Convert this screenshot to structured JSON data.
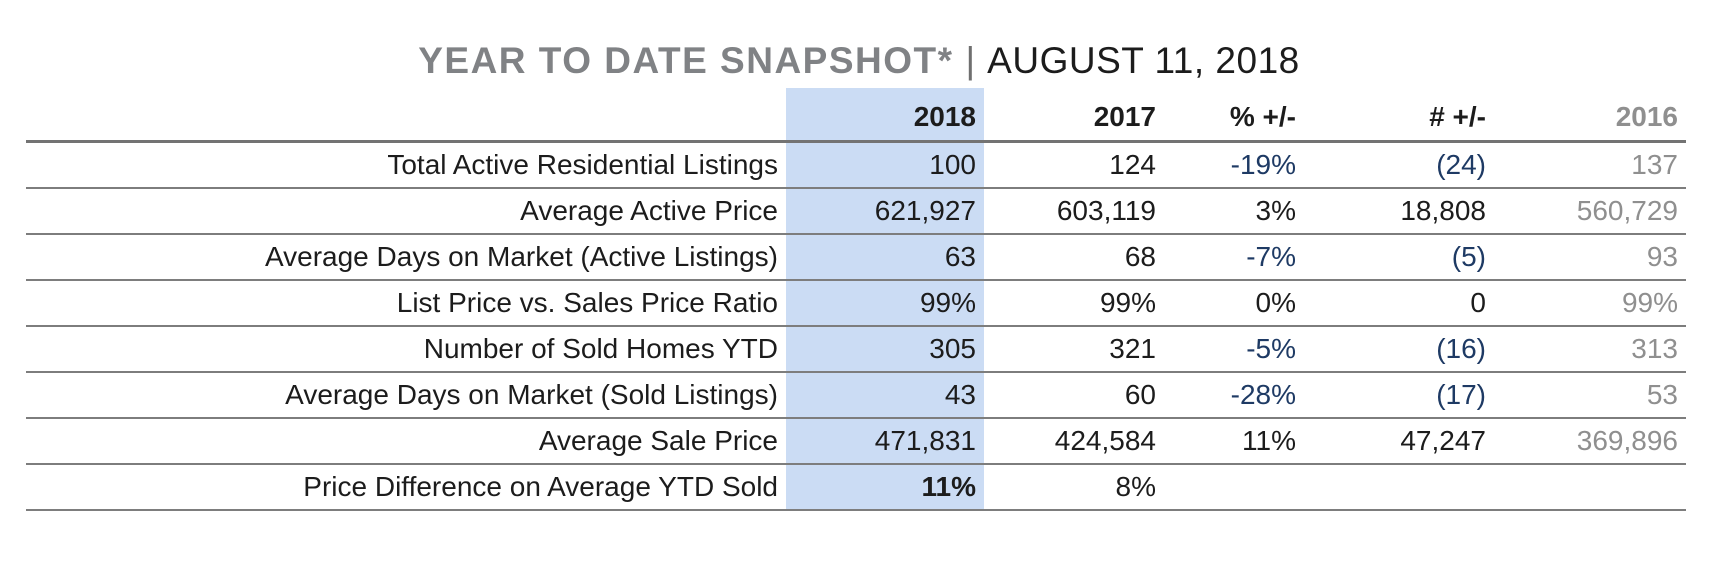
{
  "title": {
    "primary": "YEAR TO DATE SNAPSHOT*",
    "separator": "|",
    "secondary": "AUGUST 11, 2018"
  },
  "table": {
    "columns": [
      {
        "key": "label",
        "label": "",
        "highlight": false,
        "muted": false
      },
      {
        "key": "y2018",
        "label": "2018",
        "highlight": true,
        "muted": false
      },
      {
        "key": "y2017",
        "label": "2017",
        "highlight": false,
        "muted": false
      },
      {
        "key": "pct",
        "label": "% +/-",
        "highlight": false,
        "muted": false
      },
      {
        "key": "num",
        "label": "# +/-",
        "highlight": false,
        "muted": false
      },
      {
        "key": "y2016",
        "label": "2016",
        "highlight": false,
        "muted": true
      }
    ],
    "rows": [
      {
        "label": "Total Active Residential Listings",
        "y2018": "100",
        "y2017": "124",
        "pct": "-19%",
        "num": "(24)",
        "y2016": "137",
        "bold2018": false
      },
      {
        "label": "Average Active Price",
        "y2018": "621,927",
        "y2017": "603,119",
        "pct": "3%",
        "num": "18,808",
        "y2016": "560,729",
        "bold2018": false
      },
      {
        "label": "Average Days on Market (Active Listings)",
        "y2018": "63",
        "y2017": "68",
        "pct": "-7%",
        "num": "(5)",
        "y2016": "93",
        "bold2018": false
      },
      {
        "label": "List Price vs. Sales Price Ratio",
        "y2018": "99%",
        "y2017": "99%",
        "pct": "0%",
        "num": "0",
        "y2016": "99%",
        "bold2018": false
      },
      {
        "label": "Number of Sold Homes YTD",
        "y2018": "305",
        "y2017": "321",
        "pct": "-5%",
        "num": "(16)",
        "y2016": "313",
        "bold2018": false
      },
      {
        "label": "Average Days on Market (Sold Listings)",
        "y2018": "43",
        "y2017": "60",
        "pct": "-28%",
        "num": "(17)",
        "y2016": "53",
        "bold2018": false
      },
      {
        "label": "Average Sale Price",
        "y2018": "471,831",
        "y2017": "424,584",
        "pct": "11%",
        "num": "47,247",
        "y2016": "369,896",
        "bold2018": false
      },
      {
        "label": "Price Difference on Average YTD Sold",
        "y2018": "11%",
        "y2017": "8%",
        "pct": "",
        "num": "",
        "y2016": "",
        "bold2018": true
      }
    ]
  },
  "colors": {
    "highlight": "#cbdcf4",
    "negative": "#1e3a64",
    "muted_gray": "#8f8f8f",
    "title_gray": "#808285",
    "text": "#1c1c1c",
    "line": "#7d7d7d"
  }
}
